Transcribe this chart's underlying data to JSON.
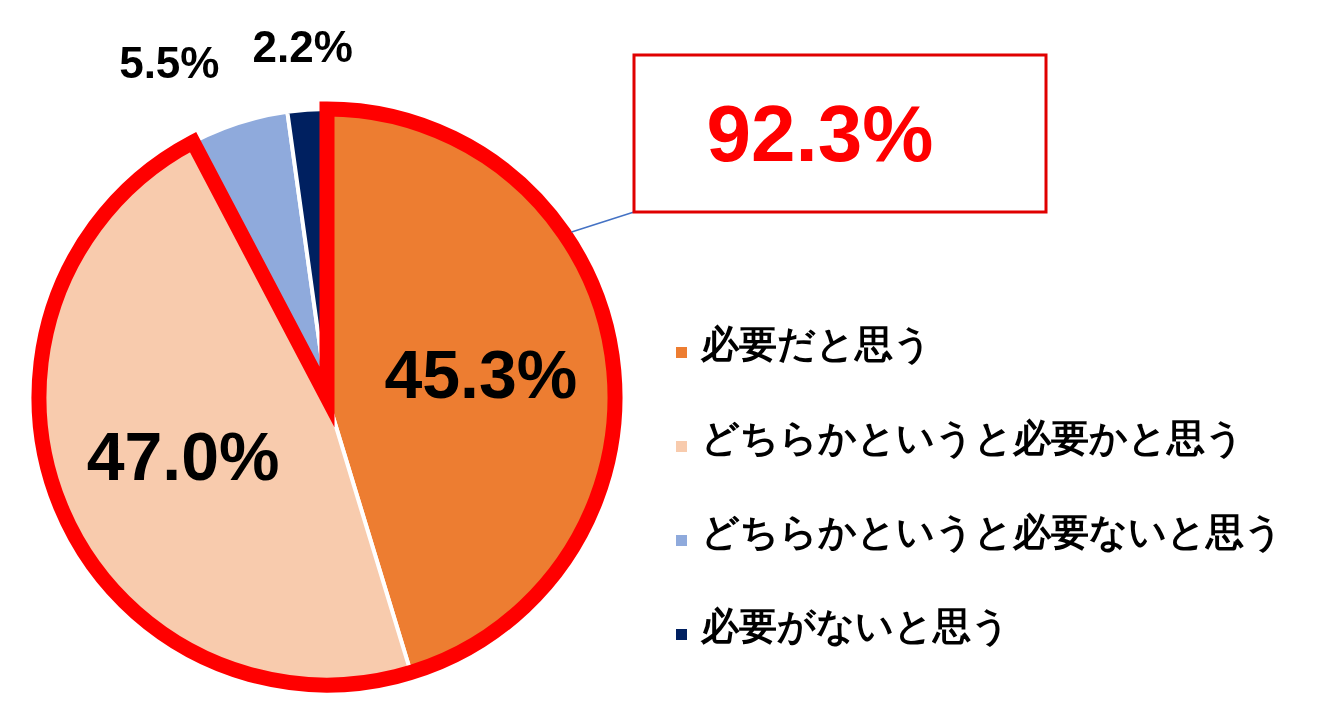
{
  "chart_data": {
    "type": "pie",
    "categories": [
      "必要だと思う",
      "どちらかというと必要かと思う",
      "どちらかというと必要ないと思う",
      "必要がないと思う"
    ],
    "values": [
      45.3,
      47.0,
      5.5,
      2.2
    ],
    "colors": [
      "#ed7d31",
      "#f8cbad",
      "#8faadc",
      "#002060"
    ],
    "value_labels": [
      "45.3%",
      "47.0%",
      "5.5%",
      "2.2%"
    ],
    "legend": "right",
    "annotations": [
      "92.3%"
    ]
  }
}
